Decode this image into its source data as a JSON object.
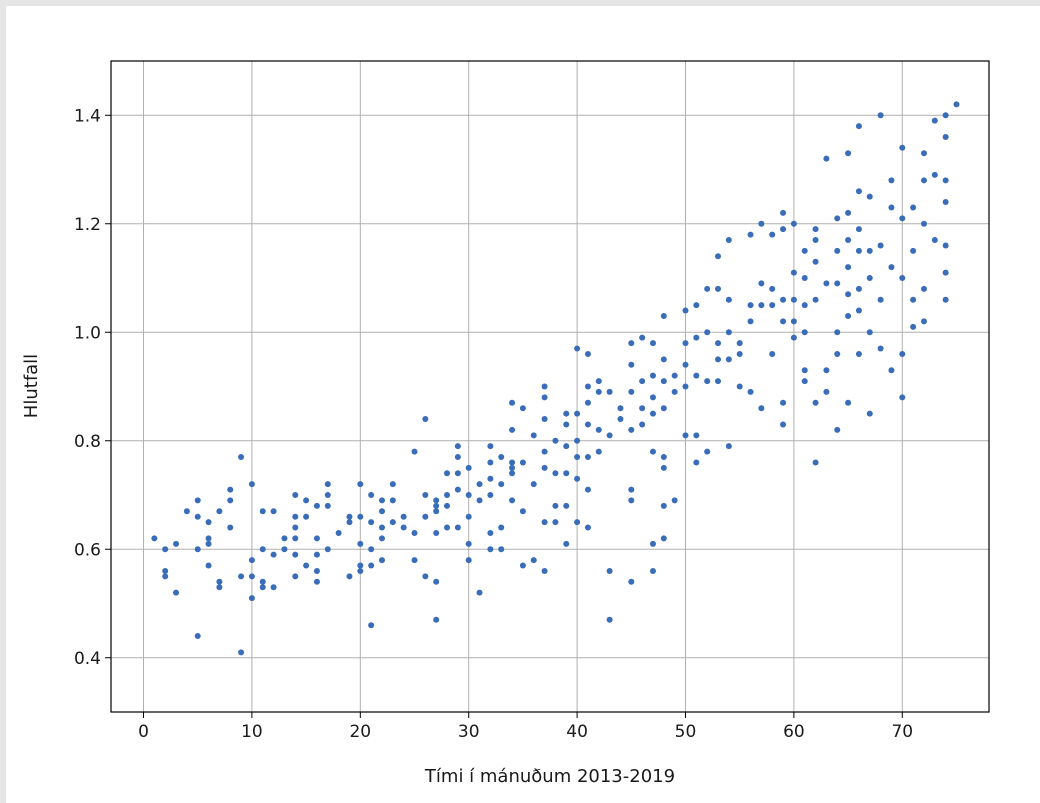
{
  "chart_data": {
    "type": "scatter",
    "xlabel": "Tími í mánuðum 2013-2019",
    "ylabel": "Hlutfall",
    "xlim": [
      -3,
      78
    ],
    "ylim": [
      0.3,
      1.5
    ],
    "xticks": [
      0,
      10,
      20,
      30,
      40,
      50,
      60,
      70
    ],
    "yticks": [
      0.4,
      0.6,
      0.8,
      1.0,
      1.2,
      1.4
    ],
    "ytick_labels": [
      "0.4",
      "0.6",
      "0.8",
      "1.0",
      "1.2",
      "1.4"
    ],
    "grid": true,
    "marker_color": "#3a6db8",
    "points": [
      [
        1,
        0.62
      ],
      [
        2,
        0.6
      ],
      [
        2,
        0.56
      ],
      [
        2,
        0.55
      ],
      [
        3,
        0.61
      ],
      [
        3,
        0.52
      ],
      [
        4,
        0.67
      ],
      [
        5,
        0.69
      ],
      [
        5,
        0.66
      ],
      [
        5,
        0.6
      ],
      [
        5,
        0.44
      ],
      [
        6,
        0.65
      ],
      [
        6,
        0.62
      ],
      [
        6,
        0.61
      ],
      [
        6,
        0.57
      ],
      [
        7,
        0.67
      ],
      [
        7,
        0.54
      ],
      [
        7,
        0.53
      ],
      [
        8,
        0.71
      ],
      [
        8,
        0.69
      ],
      [
        8,
        0.64
      ],
      [
        9,
        0.77
      ],
      [
        9,
        0.55
      ],
      [
        9,
        0.41
      ],
      [
        10,
        0.72
      ],
      [
        10,
        0.58
      ],
      [
        10,
        0.55
      ],
      [
        10,
        0.51
      ],
      [
        11,
        0.67
      ],
      [
        11,
        0.6
      ],
      [
        11,
        0.54
      ],
      [
        11,
        0.53
      ],
      [
        12,
        0.67
      ],
      [
        12,
        0.59
      ],
      [
        12,
        0.53
      ],
      [
        13,
        0.62
      ],
      [
        13,
        0.6
      ],
      [
        14,
        0.7
      ],
      [
        14,
        0.66
      ],
      [
        14,
        0.64
      ],
      [
        14,
        0.62
      ],
      [
        14,
        0.59
      ],
      [
        14,
        0.55
      ],
      [
        15,
        0.69
      ],
      [
        15,
        0.66
      ],
      [
        15,
        0.57
      ],
      [
        16,
        0.68
      ],
      [
        16,
        0.62
      ],
      [
        16,
        0.59
      ],
      [
        16,
        0.56
      ],
      [
        16,
        0.54
      ],
      [
        17,
        0.72
      ],
      [
        17,
        0.7
      ],
      [
        17,
        0.68
      ],
      [
        17,
        0.6
      ],
      [
        18,
        0.63
      ],
      [
        19,
        0.66
      ],
      [
        19,
        0.65
      ],
      [
        19,
        0.55
      ],
      [
        20,
        0.72
      ],
      [
        20,
        0.66
      ],
      [
        20,
        0.61
      ],
      [
        20,
        0.57
      ],
      [
        20,
        0.56
      ],
      [
        21,
        0.7
      ],
      [
        21,
        0.65
      ],
      [
        21,
        0.6
      ],
      [
        21,
        0.57
      ],
      [
        21,
        0.46
      ],
      [
        22,
        0.69
      ],
      [
        22,
        0.67
      ],
      [
        22,
        0.64
      ],
      [
        22,
        0.62
      ],
      [
        22,
        0.58
      ],
      [
        23,
        0.72
      ],
      [
        23,
        0.69
      ],
      [
        23,
        0.65
      ],
      [
        24,
        0.66
      ],
      [
        24,
        0.64
      ],
      [
        25,
        0.78
      ],
      [
        25,
        0.63
      ],
      [
        25,
        0.58
      ],
      [
        26,
        0.84
      ],
      [
        26,
        0.7
      ],
      [
        26,
        0.66
      ],
      [
        26,
        0.55
      ],
      [
        27,
        0.69
      ],
      [
        27,
        0.68
      ],
      [
        27,
        0.67
      ],
      [
        27,
        0.63
      ],
      [
        27,
        0.54
      ],
      [
        27,
        0.47
      ],
      [
        28,
        0.74
      ],
      [
        28,
        0.7
      ],
      [
        28,
        0.68
      ],
      [
        28,
        0.64
      ],
      [
        29,
        0.79
      ],
      [
        29,
        0.77
      ],
      [
        29,
        0.74
      ],
      [
        29,
        0.71
      ],
      [
        29,
        0.64
      ],
      [
        30,
        0.75
      ],
      [
        30,
        0.7
      ],
      [
        30,
        0.66
      ],
      [
        30,
        0.61
      ],
      [
        30,
        0.58
      ],
      [
        31,
        0.72
      ],
      [
        31,
        0.69
      ],
      [
        31,
        0.52
      ],
      [
        32,
        0.79
      ],
      [
        32,
        0.76
      ],
      [
        32,
        0.73
      ],
      [
        32,
        0.7
      ],
      [
        32,
        0.63
      ],
      [
        32,
        0.6
      ],
      [
        33,
        0.77
      ],
      [
        33,
        0.72
      ],
      [
        33,
        0.64
      ],
      [
        33,
        0.6
      ],
      [
        34,
        0.87
      ],
      [
        34,
        0.82
      ],
      [
        34,
        0.76
      ],
      [
        34,
        0.75
      ],
      [
        34,
        0.74
      ],
      [
        34,
        0.69
      ],
      [
        35,
        0.86
      ],
      [
        35,
        0.76
      ],
      [
        35,
        0.67
      ],
      [
        35,
        0.57
      ],
      [
        36,
        0.81
      ],
      [
        36,
        0.72
      ],
      [
        36,
        0.58
      ],
      [
        37,
        0.9
      ],
      [
        37,
        0.88
      ],
      [
        37,
        0.84
      ],
      [
        37,
        0.78
      ],
      [
        37,
        0.75
      ],
      [
        37,
        0.65
      ],
      [
        37,
        0.56
      ],
      [
        38,
        0.8
      ],
      [
        38,
        0.74
      ],
      [
        38,
        0.68
      ],
      [
        38,
        0.65
      ],
      [
        39,
        0.85
      ],
      [
        39,
        0.83
      ],
      [
        39,
        0.79
      ],
      [
        39,
        0.74
      ],
      [
        39,
        0.68
      ],
      [
        39,
        0.61
      ],
      [
        40,
        0.97
      ],
      [
        40,
        0.85
      ],
      [
        40,
        0.8
      ],
      [
        40,
        0.77
      ],
      [
        40,
        0.73
      ],
      [
        40,
        0.65
      ],
      [
        41,
        0.96
      ],
      [
        41,
        0.9
      ],
      [
        41,
        0.87
      ],
      [
        41,
        0.83
      ],
      [
        41,
        0.77
      ],
      [
        41,
        0.71
      ],
      [
        41,
        0.64
      ],
      [
        42,
        0.91
      ],
      [
        42,
        0.89
      ],
      [
        42,
        0.82
      ],
      [
        42,
        0.78
      ],
      [
        43,
        0.89
      ],
      [
        43,
        0.81
      ],
      [
        43,
        0.56
      ],
      [
        43,
        0.47
      ],
      [
        44,
        0.86
      ],
      [
        44,
        0.84
      ],
      [
        45,
        0.98
      ],
      [
        45,
        0.94
      ],
      [
        45,
        0.89
      ],
      [
        45,
        0.82
      ],
      [
        45,
        0.71
      ],
      [
        45,
        0.69
      ],
      [
        45,
        0.54
      ],
      [
        46,
        0.99
      ],
      [
        46,
        0.91
      ],
      [
        46,
        0.86
      ],
      [
        46,
        0.83
      ],
      [
        47,
        0.98
      ],
      [
        47,
        0.92
      ],
      [
        47,
        0.88
      ],
      [
        47,
        0.85
      ],
      [
        47,
        0.78
      ],
      [
        47,
        0.61
      ],
      [
        47,
        0.56
      ],
      [
        48,
        1.03
      ],
      [
        48,
        0.95
      ],
      [
        48,
        0.91
      ],
      [
        48,
        0.86
      ],
      [
        48,
        0.77
      ],
      [
        48,
        0.75
      ],
      [
        48,
        0.68
      ],
      [
        48,
        0.62
      ],
      [
        49,
        0.92
      ],
      [
        49,
        0.89
      ],
      [
        49,
        0.69
      ],
      [
        50,
        1.04
      ],
      [
        50,
        0.98
      ],
      [
        50,
        0.94
      ],
      [
        50,
        0.9
      ],
      [
        50,
        0.81
      ],
      [
        51,
        1.05
      ],
      [
        51,
        0.99
      ],
      [
        51,
        0.92
      ],
      [
        51,
        0.81
      ],
      [
        51,
        0.76
      ],
      [
        52,
        1.08
      ],
      [
        52,
        1.0
      ],
      [
        52,
        0.91
      ],
      [
        52,
        0.78
      ],
      [
        53,
        1.14
      ],
      [
        53,
        1.08
      ],
      [
        53,
        0.98
      ],
      [
        53,
        0.95
      ],
      [
        53,
        0.91
      ],
      [
        54,
        1.17
      ],
      [
        54,
        1.06
      ],
      [
        54,
        1.0
      ],
      [
        54,
        0.95
      ],
      [
        54,
        0.79
      ],
      [
        55,
        0.98
      ],
      [
        55,
        0.96
      ],
      [
        55,
        0.9
      ],
      [
        56,
        1.18
      ],
      [
        56,
        1.05
      ],
      [
        56,
        1.02
      ],
      [
        56,
        0.89
      ],
      [
        57,
        1.2
      ],
      [
        57,
        1.09
      ],
      [
        57,
        1.05
      ],
      [
        57,
        0.86
      ],
      [
        58,
        1.18
      ],
      [
        58,
        1.08
      ],
      [
        58,
        1.05
      ],
      [
        58,
        0.96
      ],
      [
        59,
        1.22
      ],
      [
        59,
        1.19
      ],
      [
        59,
        1.06
      ],
      [
        59,
        1.02
      ],
      [
        59,
        0.87
      ],
      [
        59,
        0.83
      ],
      [
        60,
        1.2
      ],
      [
        60,
        1.11
      ],
      [
        60,
        1.06
      ],
      [
        60,
        1.02
      ],
      [
        60,
        0.99
      ],
      [
        61,
        1.15
      ],
      [
        61,
        1.1
      ],
      [
        61,
        1.05
      ],
      [
        61,
        1.0
      ],
      [
        61,
        0.93
      ],
      [
        61,
        0.91
      ],
      [
        62,
        1.19
      ],
      [
        62,
        1.17
      ],
      [
        62,
        1.13
      ],
      [
        62,
        1.06
      ],
      [
        62,
        0.87
      ],
      [
        62,
        0.76
      ],
      [
        63,
        1.32
      ],
      [
        63,
        1.09
      ],
      [
        63,
        0.93
      ],
      [
        63,
        0.89
      ],
      [
        64,
        1.21
      ],
      [
        64,
        1.15
      ],
      [
        64,
        1.09
      ],
      [
        64,
        1.0
      ],
      [
        64,
        0.96
      ],
      [
        64,
        0.82
      ],
      [
        65,
        1.33
      ],
      [
        65,
        1.22
      ],
      [
        65,
        1.17
      ],
      [
        65,
        1.12
      ],
      [
        65,
        1.07
      ],
      [
        65,
        1.03
      ],
      [
        65,
        0.87
      ],
      [
        66,
        1.38
      ],
      [
        66,
        1.26
      ],
      [
        66,
        1.19
      ],
      [
        66,
        1.15
      ],
      [
        66,
        1.08
      ],
      [
        66,
        1.04
      ],
      [
        66,
        0.96
      ],
      [
        67,
        1.25
      ],
      [
        67,
        1.15
      ],
      [
        67,
        1.1
      ],
      [
        67,
        1.0
      ],
      [
        67,
        0.85
      ],
      [
        68,
        1.4
      ],
      [
        68,
        1.16
      ],
      [
        68,
        1.06
      ],
      [
        68,
        0.97
      ],
      [
        69,
        1.28
      ],
      [
        69,
        1.23
      ],
      [
        69,
        1.12
      ],
      [
        69,
        0.93
      ],
      [
        70,
        1.34
      ],
      [
        70,
        1.21
      ],
      [
        70,
        1.1
      ],
      [
        70,
        0.96
      ],
      [
        70,
        0.88
      ],
      [
        71,
        1.23
      ],
      [
        71,
        1.15
      ],
      [
        71,
        1.06
      ],
      [
        71,
        1.01
      ],
      [
        72,
        1.33
      ],
      [
        72,
        1.28
      ],
      [
        72,
        1.2
      ],
      [
        72,
        1.08
      ],
      [
        72,
        1.02
      ],
      [
        73,
        1.39
      ],
      [
        73,
        1.29
      ],
      [
        73,
        1.17
      ],
      [
        74,
        1.4
      ],
      [
        74,
        1.36
      ],
      [
        74,
        1.28
      ],
      [
        74,
        1.24
      ],
      [
        74,
        1.16
      ],
      [
        74,
        1.11
      ],
      [
        74,
        1.06
      ],
      [
        75,
        1.42
      ]
    ]
  }
}
